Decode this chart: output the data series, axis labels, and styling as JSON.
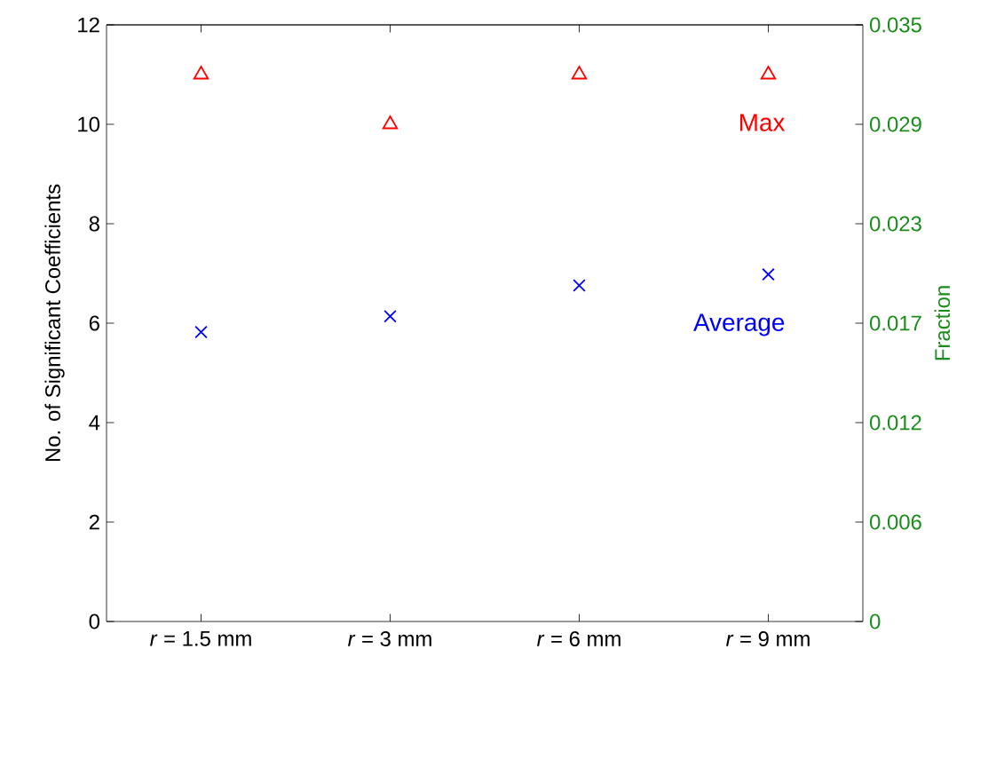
{
  "chart_data": {
    "type": "scatter",
    "categories": [
      "*r* = 1.5 mm",
      "*r* = 3 mm",
      "*r* = 6 mm",
      "*r* = 9 mm"
    ],
    "ylabel": "No. of Significant Coefficients",
    "y2label": "Fraction",
    "ylim": [
      0,
      12
    ],
    "yticks": [
      0,
      2,
      4,
      6,
      8,
      10,
      12
    ],
    "y2lim": [
      0,
      0.035
    ],
    "y2ticks": [
      0,
      {
        "value": 0.005833,
        "label": "0.006"
      },
      {
        "value": 0.011667,
        "label": "0.012"
      },
      {
        "value": 0.0175,
        "label": "0.017"
      },
      {
        "value": 0.023333,
        "label": "0.023"
      },
      {
        "value": 0.029167,
        "label": "0.029"
      },
      0.035
    ],
    "legend": false,
    "grid": false,
    "series": [
      {
        "name": "Max",
        "color": "#ff0000",
        "marker": "triangle",
        "values": [
          11,
          10,
          11,
          11
        ]
      },
      {
        "name": "Average",
        "color": "#0000ff",
        "marker": "cross",
        "values": [
          5.82,
          6.14,
          6.76,
          6.98
        ]
      }
    ]
  }
}
